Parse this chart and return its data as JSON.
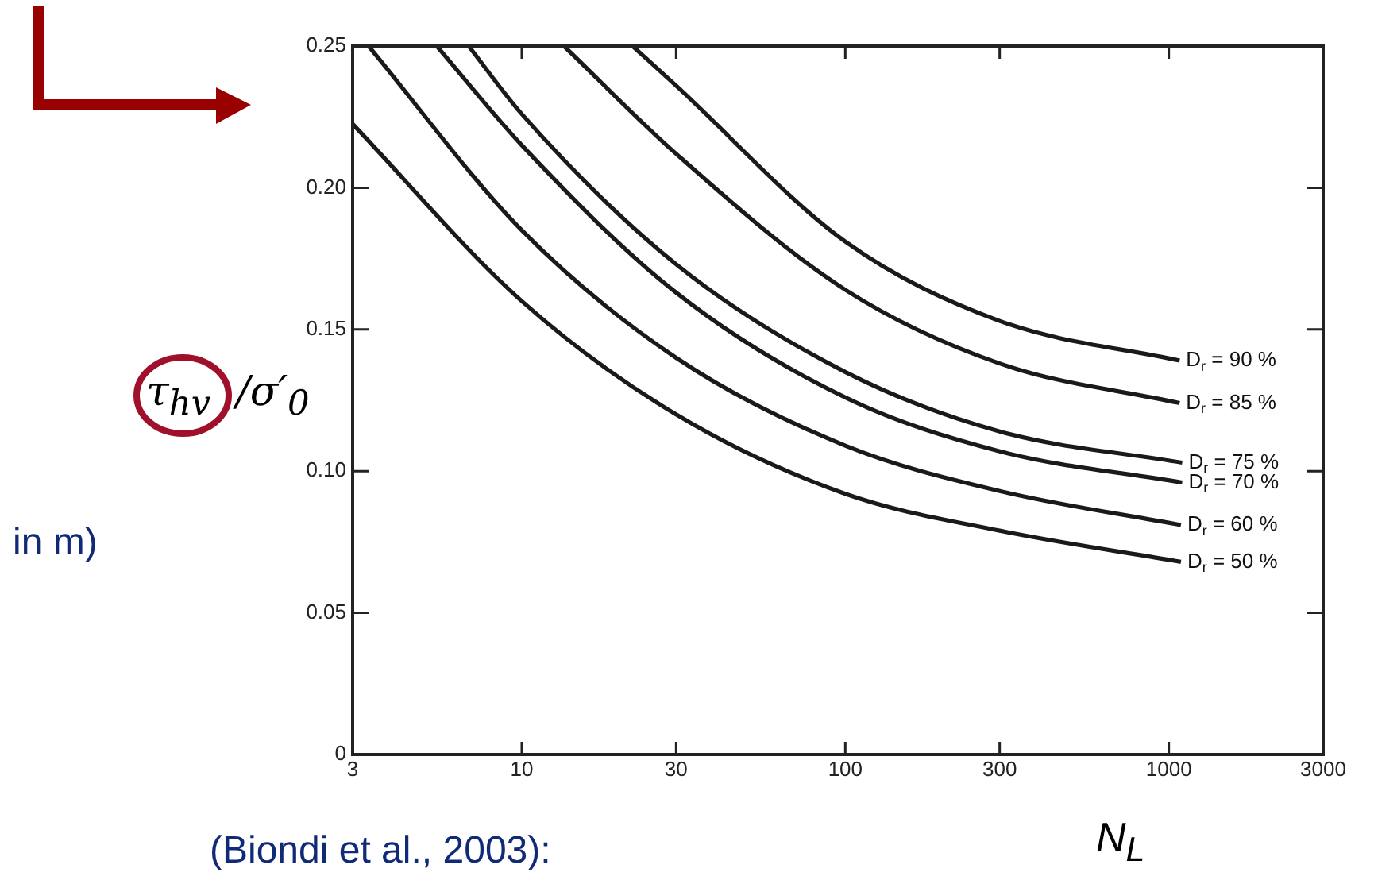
{
  "chart_data": {
    "type": "line",
    "xlabel": "N$_{L}$",
    "ylabel": "τ$_{hv}$/σ′$_{0}$",
    "log": "x",
    "xlim": [
      3,
      3000
    ],
    "xticks": [
      3,
      10,
      30,
      100,
      300,
      1000,
      3000
    ],
    "ylim": [
      0,
      0.25
    ],
    "yticks": [
      0,
      0.05,
      {
        "value": 0.1,
        "label": "0.10"
      },
      0.15,
      {
        "value": 0.2,
        "label": "0.20"
      },
      0.25
    ],
    "grid": false,
    "legend": "right",
    "marker": "none",
    "line_style": "solid",
    "series": [
      {
        "name": "D$_{r}$ = 90 %",
        "color": "#1a1a1a",
        "x": [
          22,
          30,
          100,
          300,
          1080
        ],
        "values": [
          0.25,
          0.236,
          0.181,
          0.153,
          0.139
        ]
      },
      {
        "name": "D$_{r}$ = 85 %",
        "color": "#1a1a1a",
        "x": [
          13.5,
          30,
          100,
          300,
          1080
        ],
        "values": [
          0.25,
          0.212,
          0.164,
          0.138,
          0.124
        ]
      },
      {
        "name": "D$_{r}$ = 75 %",
        "color": "#1a1a1a",
        "x": [
          6.85,
          10,
          30,
          100,
          300,
          1100
        ],
        "values": [
          0.25,
          0.226,
          0.173,
          0.135,
          0.114,
          0.103
        ]
      },
      {
        "name": "D$_{r}$ = 70 %",
        "color": "#1a1a1a",
        "x": [
          5.46,
          10,
          30,
          100,
          300,
          1100
        ],
        "values": [
          0.25,
          0.215,
          0.163,
          0.126,
          0.107,
          0.096
        ]
      },
      {
        "name": "D$_{r}$ = 60 %",
        "color": "#1a1a1a",
        "x": [
          3.36,
          10,
          30,
          100,
          300,
          1090
        ],
        "values": [
          0.25,
          0.185,
          0.14,
          0.109,
          0.093,
          0.081
        ]
      },
      {
        "name": "D$_{r}$ = 50 %",
        "color": "#1a1a1a",
        "x": [
          3,
          10,
          30,
          100,
          300,
          1090
        ],
        "values": [
          0.2225,
          0.16,
          0.12,
          0.092,
          0.079,
          0.068
        ]
      }
    ],
    "annotations": [
      "in m)",
      "(Biondi et al., 2003):"
    ]
  }
}
